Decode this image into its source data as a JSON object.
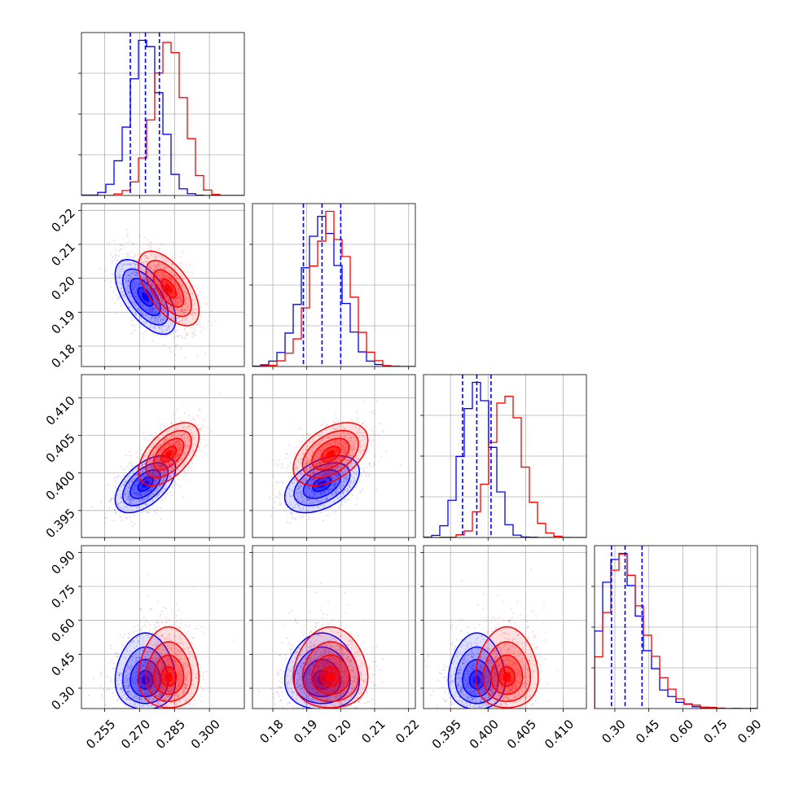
{
  "chart_data": {
    "type": "corner",
    "grid": true,
    "parameters": [
      {
        "range": [
          0.245,
          0.315
        ],
        "ticks": [
          0.255,
          0.27,
          0.285,
          0.3
        ],
        "tick_labels": [
          "0.255",
          "0.270",
          "0.285",
          "0.300"
        ]
      },
      {
        "range": [
          0.174,
          0.222
        ],
        "ticks": [
          0.18,
          0.19,
          0.2,
          0.21,
          0.22
        ],
        "tick_labels": [
          "0.18",
          "0.19",
          "0.20",
          "0.21",
          "0.22"
        ]
      },
      {
        "range": [
          0.3914,
          0.4131
        ],
        "ticks": [
          0.395,
          0.4,
          0.405,
          0.41
        ],
        "tick_labels": [
          "0.395",
          "0.400",
          "0.405",
          "0.410"
        ]
      },
      {
        "range": [
          0.21,
          0.93
        ],
        "ticks": [
          0.3,
          0.45,
          0.6,
          0.75,
          0.9
        ],
        "tick_labels": [
          "0.30",
          "0.45",
          "0.60",
          "0.75",
          "0.90"
        ]
      }
    ],
    "series": [
      {
        "color": "#0000ff",
        "means": [
          0.2725,
          0.1945,
          0.3985,
          0.345
        ],
        "sds": [
          0.0065,
          0.0055,
          0.0019,
          0.085
        ],
        "correlations": {
          "1-0": -0.6,
          "2-0": 0.55,
          "2-1": 0.45,
          "3-0": 0.0,
          "3-1": 0.0,
          "3-2": 0.0
        },
        "quantiles": [
          [
            0.266,
            0.2725,
            0.2785
          ],
          [
            0.189,
            0.1945,
            0.2
          ],
          [
            0.3966,
            0.3985,
            0.4004
          ],
          [
            0.285,
            0.345,
            0.42
          ]
        ]
      },
      {
        "color": "#ff0000",
        "means": [
          0.2825,
          0.197,
          0.4025,
          0.36
        ],
        "sds": [
          0.0065,
          0.0055,
          0.0021,
          0.09
        ],
        "correlations": {
          "1-0": -0.6,
          "2-0": 0.55,
          "2-1": 0.45,
          "3-0": 0.0,
          "3-1": 0.0,
          "3-2": 0.0
        }
      }
    ],
    "quantile_lines": {
      "color": "#0000ff",
      "style": "dashed",
      "series": 0
    }
  }
}
